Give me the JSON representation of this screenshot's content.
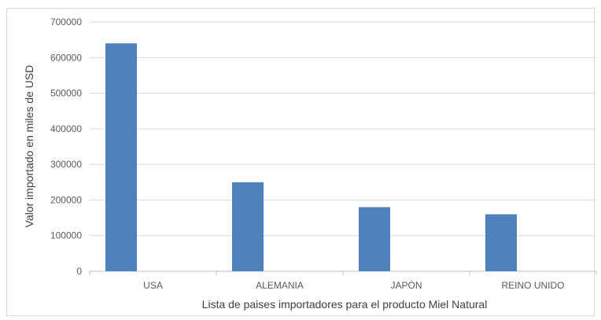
{
  "chart_data": {
    "type": "bar",
    "categories": [
      "USA",
      "ALEMANIA",
      "JAPÓN",
      "REINO UNIDO"
    ],
    "series": [
      {
        "values": [
          640000,
          250000,
          180000,
          160000
        ]
      }
    ],
    "xlabel": "Lista de paises importadores para el producto Miel Natural",
    "ylabel": "Valor importado en miles de USD",
    "ylim": [
      0,
      700000
    ],
    "yticks": [
      "0",
      "100000",
      "200000",
      "300000",
      "400000",
      "500000",
      "600000",
      "700000"
    ],
    "grid": true,
    "bar_color": "#4f81bd",
    "grid_color": "#d9d9d9",
    "legend": "none"
  }
}
